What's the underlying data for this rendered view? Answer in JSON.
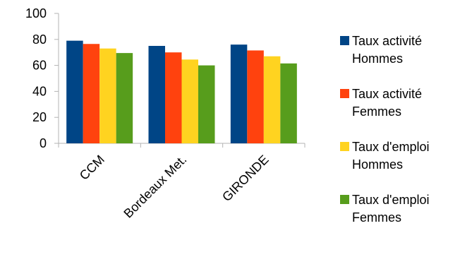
{
  "chart_data": {
    "type": "bar",
    "title": "",
    "xlabel": "",
    "ylabel": "",
    "categories": [
      "CCM",
      "Bordeaux Met.",
      "GIRONDE"
    ],
    "ylim": [
      0,
      100
    ],
    "yticks": [
      0,
      20,
      40,
      60,
      80,
      100
    ],
    "grid": false,
    "legend_position": "right",
    "series": [
      {
        "name": "Taux activité Hommes",
        "color": "#004586",
        "values": [
          79,
          75,
          76
        ]
      },
      {
        "name": "Taux activité Femmes",
        "color": "#ff420e",
        "values": [
          76.5,
          70,
          71.5
        ]
      },
      {
        "name": "Taux d'emploi Hommes",
        "color": "#ffd320",
        "values": [
          73,
          64.5,
          67
        ]
      },
      {
        "name": "Taux d'emploi Femmes",
        "color": "#579d1c",
        "values": [
          69.5,
          60,
          61.5
        ]
      }
    ]
  }
}
